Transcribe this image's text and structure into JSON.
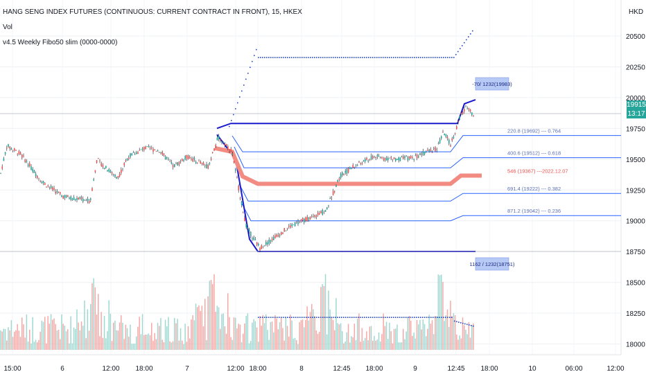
{
  "legend": {
    "title": "HANG SENG INDEX FUTURES (CONTINUOUS: CURRENT CONTRACT IN FRONT), 15, HKEX",
    "vol": "Vol",
    "indicator": "v4.5 Weekly Fibo50 slim (0000-0000)"
  },
  "currency": "HKD",
  "last_price": {
    "value": "19915",
    "countdown": "13:17"
  },
  "colors": {
    "up": "#26a69a",
    "down": "#ef5350",
    "fib_line": "#2962ff",
    "fib_bold": "#1a1acc",
    "band": "#f28b82",
    "dots": "#2446c9",
    "label_box": "#b7c9f5",
    "mid_text": "#ef5350",
    "fib_text": "#5b6fb5"
  },
  "chart_data": {
    "type": "candlestick",
    "y_axis": {
      "ticks": [
        18000,
        18250,
        18500,
        18750,
        19000,
        19250,
        19500,
        19750,
        20000,
        20250,
        20500
      ],
      "range": [
        17900,
        20640
      ]
    },
    "x_axis": {
      "ticks": [
        "15:00",
        "6",
        "12:00",
        "18:00",
        "7",
        "12:00",
        "18:00",
        "8",
        "12:45",
        "18:00",
        "9",
        "12:45",
        "18:00",
        "10",
        "06:00",
        "12:00"
      ]
    },
    "price_path": [
      [
        0,
        19360
      ],
      [
        10,
        19610
      ],
      [
        30,
        19540
      ],
      [
        60,
        19320
      ],
      [
        90,
        19200
      ],
      [
        110,
        19180
      ],
      [
        130,
        19160
      ],
      [
        140,
        19500
      ],
      [
        150,
        19440
      ],
      [
        170,
        19350
      ],
      [
        185,
        19520
      ],
      [
        210,
        19590
      ],
      [
        230,
        19570
      ],
      [
        250,
        19440
      ],
      [
        270,
        19520
      ],
      [
        300,
        19440
      ],
      [
        315,
        19680
      ],
      [
        335,
        19560
      ],
      [
        345,
        19240
      ],
      [
        355,
        18960
      ],
      [
        365,
        18860
      ],
      [
        375,
        18780
      ],
      [
        395,
        18860
      ],
      [
        420,
        18960
      ],
      [
        445,
        19020
      ],
      [
        470,
        19080
      ],
      [
        490,
        19360
      ],
      [
        510,
        19440
      ],
      [
        540,
        19520
      ],
      [
        570,
        19500
      ],
      [
        595,
        19510
      ],
      [
        615,
        19560
      ],
      [
        630,
        19580
      ],
      [
        640,
        19720
      ],
      [
        650,
        19620
      ],
      [
        665,
        19860
      ],
      [
        675,
        19930
      ],
      [
        685,
        19840
      ]
    ],
    "fib_levels": [
      {
        "label": "-70/ 1232(19983)",
        "value": 19983
      },
      {
        "label": "220.8 (19692) --- 0.764",
        "value": 19692
      },
      {
        "label": "400.6 (19512) --- 0.618",
        "value": 19512
      },
      {
        "label": "546 (19367) ---2022.12.07",
        "value": 19367
      },
      {
        "label": "691.4 (19222) --- 0.382",
        "value": 19222
      },
      {
        "label": "871.2 (19042) --- 0.236",
        "value": 19042
      },
      {
        "label": "1162 / 1232(18751)",
        "value": 18751
      }
    ],
    "band": {
      "value": 19300,
      "x_start": 340,
      "x_end": 695
    },
    "volume_profile": "volume bars shown below price, peaks near each session open"
  }
}
